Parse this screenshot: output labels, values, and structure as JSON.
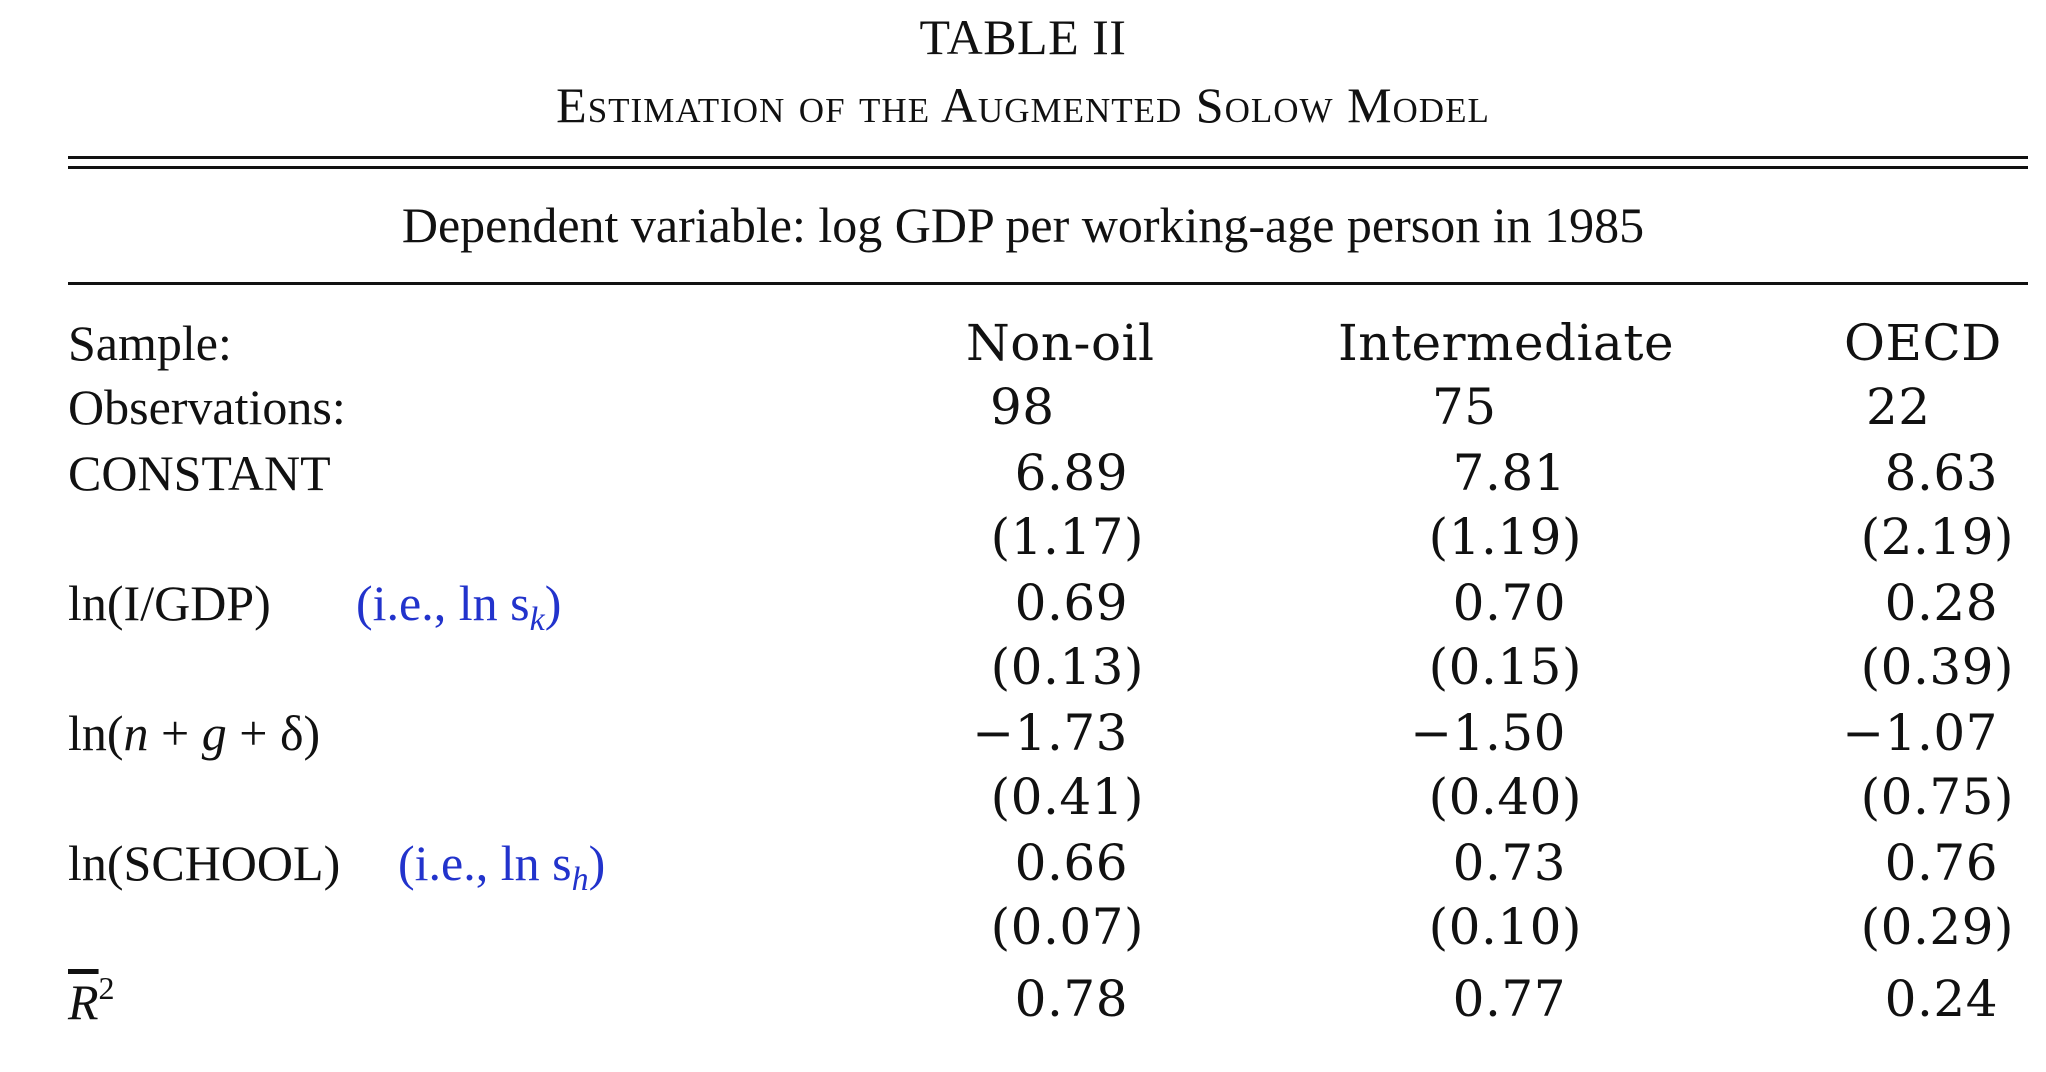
{
  "table": {
    "title": "TABLE II",
    "subtitle": "Estimation of the Augmented Solow Model",
    "dependent_variable": "Dependent variable: log GDP per working-age person in 1985",
    "header": {
      "label": "Sample:",
      "columns": [
        "Non-oil",
        "Intermediate",
        "OECD"
      ]
    },
    "observations": {
      "label": "Observations:",
      "values": [
        "98",
        "75",
        "22"
      ]
    },
    "rows": [
      {
        "label": "CONSTANT",
        "note": "",
        "coef": [
          "6.89",
          "7.81",
          "8.63"
        ],
        "se": [
          "(1.17)",
          "(1.19)",
          "(2.19)"
        ]
      },
      {
        "label": "ln(I/GDP)",
        "note": "(i.e., ln s",
        "note_sub": "k",
        "note_close": ")",
        "coef": [
          "0.69",
          "0.70",
          "0.28"
        ],
        "se": [
          "(0.13)",
          "(0.15)",
          "(0.39)"
        ]
      },
      {
        "label_parts": [
          "ln(",
          "n",
          " + ",
          "g",
          " + δ)"
        ],
        "coef": [
          "−1.73",
          "−1.50",
          "−1.07"
        ],
        "se": [
          "(0.41)",
          "(0.40)",
          "(0.75)"
        ]
      },
      {
        "label": "ln(SCHOOL)",
        "note": "(i.e., ln s",
        "note_sub": "h",
        "note_close": ")",
        "coef": [
          "0.66",
          "0.73",
          "0.76"
        ],
        "se": [
          "(0.07)",
          "(0.10)",
          "(0.29)"
        ]
      }
    ],
    "r2": {
      "label": "R",
      "label_sup": "2",
      "values": [
        "0.78",
        "0.77",
        "0.24"
      ]
    }
  },
  "colors": {
    "text": "#111111",
    "annotation": "#2233cc"
  }
}
